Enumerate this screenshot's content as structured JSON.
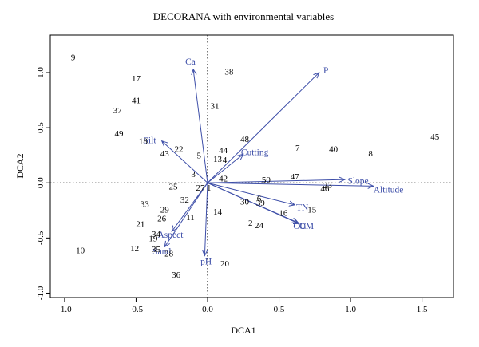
{
  "chart_data": {
    "type": "scatter",
    "title": "DECORANA with environmental variables",
    "xlabel": "DCA1",
    "ylabel": "DCA2",
    "xlim": [
      -1.1,
      1.72
    ],
    "ylim": [
      -1.04,
      1.34
    ],
    "xticks": [
      {
        "value": -1.0,
        "label": "-1.0"
      },
      {
        "value": -0.5,
        "label": "-0.5"
      },
      {
        "value": 0.0,
        "label": "0.0"
      },
      {
        "value": 0.5,
        "label": "0.5"
      },
      {
        "value": 1.0,
        "label": "1.0"
      },
      {
        "value": 1.5,
        "label": "1.5"
      }
    ],
    "yticks": [
      {
        "value": -1.0,
        "label": "-1.0"
      },
      {
        "value": -0.5,
        "label": "-0.5"
      },
      {
        "value": 0.0,
        "label": "0.0"
      },
      {
        "value": 0.5,
        "label": "0.5"
      },
      {
        "value": 1.0,
        "label": "1.0"
      }
    ],
    "reference_lines": {
      "x": 0,
      "y": 0,
      "style": "dotted"
    },
    "arrow_color": "#3d4ea8",
    "sites": [
      {
        "label": "9",
        "x": -0.94,
        "y": 1.14
      },
      {
        "label": "17",
        "x": -0.5,
        "y": 0.95
      },
      {
        "label": "38",
        "x": 0.15,
        "y": 1.01
      },
      {
        "label": "41",
        "x": -0.5,
        "y": 0.75
      },
      {
        "label": "37",
        "x": -0.63,
        "y": 0.66
      },
      {
        "label": "31",
        "x": 0.05,
        "y": 0.7
      },
      {
        "label": "49",
        "x": -0.62,
        "y": 0.45
      },
      {
        "label": "18",
        "x": -0.45,
        "y": 0.38
      },
      {
        "label": "48",
        "x": 0.26,
        "y": 0.4
      },
      {
        "label": "22",
        "x": -0.2,
        "y": 0.31
      },
      {
        "label": "43",
        "x": -0.3,
        "y": 0.27
      },
      {
        "label": "44",
        "x": 0.11,
        "y": 0.3
      },
      {
        "label": "5",
        "x": -0.06,
        "y": 0.25
      },
      {
        "label": "13",
        "x": 0.07,
        "y": 0.22
      },
      {
        "label": "4",
        "x": 0.12,
        "y": 0.21
      },
      {
        "label": "7",
        "x": 0.63,
        "y": 0.32
      },
      {
        "label": "40",
        "x": 0.88,
        "y": 0.31
      },
      {
        "label": "8",
        "x": 1.14,
        "y": 0.27
      },
      {
        "label": "45",
        "x": 1.59,
        "y": 0.42
      },
      {
        "label": "3",
        "x": -0.1,
        "y": 0.08
      },
      {
        "label": "42",
        "x": 0.11,
        "y": 0.04
      },
      {
        "label": "50",
        "x": 0.41,
        "y": 0.03
      },
      {
        "label": "47",
        "x": 0.61,
        "y": 0.06
      },
      {
        "label": "25",
        "x": -0.24,
        "y": -0.03
      },
      {
        "label": "27",
        "x": -0.05,
        "y": -0.04
      },
      {
        "label": "1",
        "x": 0.01,
        "y": -0.04
      },
      {
        "label": "6",
        "x": 0.36,
        "y": -0.14
      },
      {
        "label": "23",
        "x": 0.84,
        "y": -0.02
      },
      {
        "label": "46",
        "x": 0.82,
        "y": -0.05
      },
      {
        "label": "30",
        "x": 0.26,
        "y": -0.17
      },
      {
        "label": "39",
        "x": 0.37,
        "y": -0.18
      },
      {
        "label": "32",
        "x": -0.16,
        "y": -0.15
      },
      {
        "label": "33",
        "x": -0.44,
        "y": -0.19
      },
      {
        "label": "29",
        "x": -0.3,
        "y": -0.24
      },
      {
        "label": "14",
        "x": 0.07,
        "y": -0.26
      },
      {
        "label": "16",
        "x": 0.53,
        "y": -0.27
      },
      {
        "label": "15",
        "x": 0.73,
        "y": -0.24
      },
      {
        "label": "26",
        "x": -0.32,
        "y": -0.32
      },
      {
        "label": "11",
        "x": -0.12,
        "y": -0.31
      },
      {
        "label": "21",
        "x": -0.47,
        "y": -0.37
      },
      {
        "label": "2",
        "x": 0.3,
        "y": -0.36
      },
      {
        "label": "24",
        "x": 0.36,
        "y": -0.38
      },
      {
        "label": "34",
        "x": -0.36,
        "y": -0.46
      },
      {
        "label": "19",
        "x": -0.38,
        "y": -0.5
      },
      {
        "label": "12",
        "x": -0.51,
        "y": -0.59
      },
      {
        "label": "35",
        "x": -0.36,
        "y": -0.6
      },
      {
        "label": "28",
        "x": -0.27,
        "y": -0.64
      },
      {
        "label": "10",
        "x": -0.89,
        "y": -0.61
      },
      {
        "label": "20",
        "x": 0.12,
        "y": -0.73
      },
      {
        "label": "36",
        "x": -0.22,
        "y": -0.83
      }
    ],
    "env_vectors": [
      {
        "name": "Ca",
        "x": -0.1,
        "y": 1.03,
        "label_x": -0.12,
        "label_y": 1.1,
        "anchor": "middle"
      },
      {
        "name": "P",
        "x": 0.78,
        "y": 1.0,
        "label_x": 0.81,
        "label_y": 1.02,
        "anchor": "start"
      },
      {
        "name": "Silt",
        "x": -0.32,
        "y": 0.38,
        "label_x": -0.36,
        "label_y": 0.39,
        "anchor": "end"
      },
      {
        "name": "Cutting",
        "x": 0.25,
        "y": 0.26,
        "label_x": 0.33,
        "label_y": 0.28,
        "anchor": "middle"
      },
      {
        "name": "Slope",
        "x": 0.96,
        "y": 0.03,
        "label_x": 0.98,
        "label_y": 0.02,
        "anchor": "start"
      },
      {
        "name": "Altitude",
        "x": 1.16,
        "y": -0.03,
        "label_x": 1.16,
        "label_y": -0.06,
        "anchor": "start"
      },
      {
        "name": "TN",
        "x": 0.61,
        "y": -0.2,
        "label_x": 0.62,
        "label_y": -0.22,
        "anchor": "start"
      },
      {
        "name": "OC",
        "x": 0.63,
        "y": -0.36,
        "label_x": 0.6,
        "label_y": -0.39,
        "anchor": "start"
      },
      {
        "name": "OM",
        "x": 0.64,
        "y": -0.37,
        "label_x": 0.64,
        "label_y": -0.39,
        "anchor": "start"
      },
      {
        "name": "Aspect",
        "x": -0.25,
        "y": -0.44,
        "label_x": -0.26,
        "label_y": -0.47,
        "anchor": "middle"
      },
      {
        "name": "Sand",
        "x": -0.3,
        "y": -0.58,
        "label_x": -0.32,
        "label_y": -0.62,
        "anchor": "middle"
      },
      {
        "name": "pH",
        "x": -0.02,
        "y": -0.66,
        "label_x": -0.01,
        "label_y": -0.71,
        "anchor": "middle"
      }
    ]
  }
}
